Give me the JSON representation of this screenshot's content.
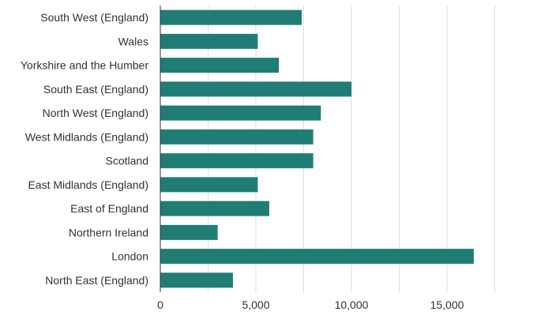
{
  "chart_data": {
    "type": "bar",
    "orientation": "horizontal",
    "categories": [
      "South West (England)",
      "Wales",
      "Yorkshire and the Humber",
      "South East (England)",
      "North West (England)",
      "West Midlands (England)",
      "Scotland",
      "East Midlands (England)",
      "East of England",
      "Northern Ireland",
      "London",
      "North East (England)"
    ],
    "values": [
      7400,
      5100,
      6200,
      10000,
      8400,
      8000,
      8000,
      5100,
      5700,
      3000,
      16400,
      3800
    ],
    "xticks": [
      0,
      5000,
      10000,
      15000
    ],
    "xtick_labels": [
      "0",
      "5,000",
      "10,000",
      "15,000"
    ],
    "xlim": [
      0,
      17500
    ],
    "grid": true,
    "bar_color": "#207d75",
    "title": "",
    "xlabel": "",
    "ylabel": ""
  }
}
